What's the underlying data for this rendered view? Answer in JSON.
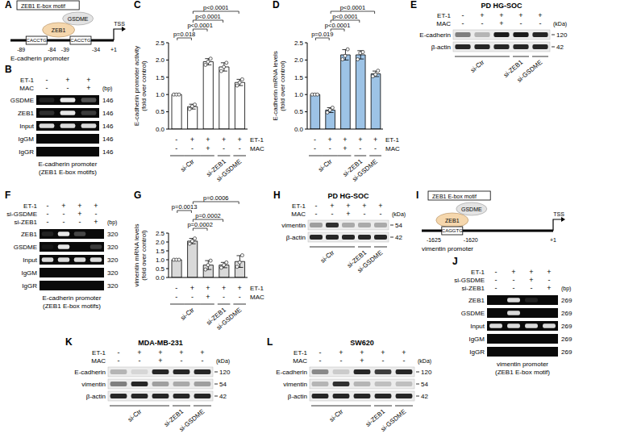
{
  "chart_data": [
    {
      "panel": "C",
      "type": "bar",
      "y_label": "E-cadherin promoter activity (fold over control)",
      "categories": [
        null,
        null,
        null,
        null,
        null
      ],
      "values": [
        1,
        0.65,
        1.95,
        1.8,
        1.35
      ],
      "errors": [
        0,
        0.07,
        0.09,
        0.12,
        0.09
      ],
      "replicates": [
        [
          1,
          1,
          1
        ],
        [
          0.58,
          0.66,
          0.71
        ],
        [
          1.86,
          1.95,
          2.04
        ],
        [
          1.68,
          1.8,
          1.92
        ],
        [
          1.26,
          1.35,
          1.44
        ]
      ],
      "color": "#ffffff",
      "ylim": [
        0,
        2.5
      ],
      "yticks": [
        {
          "value": 0,
          "label": "0.0"
        },
        0.5,
        {
          "value": 1,
          "label": "1.0"
        },
        1.5,
        {
          "value": 2,
          "label": "2.0"
        },
        2.5
      ],
      "tick_labels": "y",
      "annotations": [
        {
          "from": 0,
          "to": 1,
          "text": "p=0.018"
        },
        {
          "from": 1,
          "to": 2,
          "text": "p<0.0001"
        },
        {
          "from": 1,
          "to": 3,
          "text": "p<0.0001"
        },
        {
          "from": 1,
          "to": 4,
          "text": "p<0.0001"
        }
      ],
      "conditions": [
        {
          "label": "ET-1",
          "values": [
            "-",
            "+",
            "+",
            "+",
            "+"
          ]
        },
        {
          "label": "MAC",
          "values": [
            "-",
            "-",
            "+",
            "-",
            "-"
          ]
        }
      ],
      "groups": [
        {
          "label": "si-Ctr",
          "from": 0,
          "to": 2
        },
        {
          "label": "si-ZEB1",
          "from": 3,
          "to": 3
        },
        {
          "label": "si-GSDME",
          "from": 4,
          "to": 4
        }
      ]
    },
    {
      "panel": "D",
      "type": "bar",
      "y_label": "E-cadherin mRNA levels (fold over control)",
      "categories": [
        null,
        null,
        null,
        null,
        null
      ],
      "values": [
        1,
        0.55,
        2.15,
        2.15,
        1.6
      ],
      "errors": [
        0,
        0.07,
        0.15,
        0.12,
        0.08
      ],
      "replicates": [
        [
          1,
          1,
          1
        ],
        [
          0.48,
          0.55,
          0.62
        ],
        [
          2.02,
          2.12,
          2.31
        ],
        [
          2.02,
          2.2,
          2.23
        ],
        [
          1.53,
          1.58,
          1.69
        ]
      ],
      "color": "#9dc3e6",
      "ylim": [
        0,
        2.5
      ],
      "yticks": [
        {
          "value": 0,
          "label": "0.0"
        },
        0.5,
        {
          "value": 1,
          "label": "1.0"
        },
        1.5,
        {
          "value": 2,
          "label": "2.0"
        },
        2.5
      ],
      "tick_labels": "y",
      "annotations": [
        {
          "from": 0,
          "to": 1,
          "text": "p=0.019"
        },
        {
          "from": 1,
          "to": 2,
          "text": "p<0.0001"
        },
        {
          "from": 1,
          "to": 3,
          "text": "p<0.0001"
        },
        {
          "from": 1,
          "to": 4,
          "text": "p<0.0001"
        }
      ],
      "conditions": [
        {
          "label": "ET-1",
          "values": [
            "-",
            "+",
            "+",
            "+",
            "+"
          ]
        },
        {
          "label": "MAC",
          "values": [
            "-",
            "-",
            "+",
            "-",
            "-"
          ]
        }
      ],
      "groups": [
        {
          "label": "si-Ctr",
          "from": 0,
          "to": 2
        },
        {
          "label": "si-ZEB1",
          "from": 3,
          "to": 3
        },
        {
          "label": "si-GSDME",
          "from": 4,
          "to": 4
        }
      ]
    },
    {
      "panel": "G",
      "type": "bar",
      "y_label": "vimentin mRNA levels (fold over control)",
      "categories": [
        null,
        null,
        null,
        null,
        null
      ],
      "values": [
        1,
        2.05,
        0.7,
        0.7,
        0.9
      ],
      "errors": [
        0,
        0.15,
        0.25,
        0.15,
        0.33
      ],
      "replicates": [
        [
          1,
          1,
          1
        ],
        [
          1.9,
          2.05,
          2.2
        ],
        [
          0.45,
          0.7,
          0.95
        ],
        [
          0.55,
          0.7,
          0.85
        ],
        [
          0.6,
          0.85,
          1.25
        ]
      ],
      "color": "#d9d9d9",
      "ylim": [
        0,
        2.5
      ],
      "yticks": [
        {
          "value": 0,
          "label": "0.0"
        },
        0.5,
        {
          "value": 1,
          "label": "1.0"
        },
        1.5,
        {
          "value": 2,
          "label": "2.0"
        },
        2.5
      ],
      "tick_labels": "y",
      "annotations": [
        {
          "from": 1,
          "to": 2,
          "text": "p=0.0002"
        },
        {
          "from": 1,
          "to": 3,
          "text": "p=0.0002"
        },
        {
          "from": 0,
          "to": 1,
          "text": "p=0.0013"
        },
        {
          "from": 1,
          "to": 4,
          "text": "p=0.0006"
        }
      ],
      "conditions": [
        {
          "label": "ET-1",
          "values": [
            "-",
            "+",
            "+",
            "+",
            "+"
          ]
        },
        {
          "label": "MAC",
          "values": [
            "-",
            "-",
            "+",
            "-",
            "-"
          ]
        }
      ],
      "groups": [
        {
          "label": "si-Ctr",
          "from": 0,
          "to": 2
        },
        {
          "label": "si-ZEB1",
          "from": 3,
          "to": 3
        },
        {
          "label": "si-GSDME",
          "from": 4,
          "to": 4
        }
      ]
    }
  ],
  "diagrams": [
    {
      "panel": "A",
      "legend": "ZEB1 E-box motif",
      "promoter": "E-cadherin promoter",
      "proteins": [
        {
          "name": "ZEB1",
          "color": "#f5d7ad"
        },
        {
          "name": "GSDME",
          "color": "#e3e3e3"
        }
      ],
      "motifs": [
        {
          "sequence": "CACCTG",
          "start": -89,
          "end": -84
        },
        {
          "sequence": "CACCTG",
          "start": -39,
          "end": -34
        }
      ],
      "tss": {
        "label": "TSS",
        "value": 1,
        "value_label": "+1"
      }
    },
    {
      "panel": "I",
      "legend": "ZEB1 E-box motif",
      "promoter": "vimentin promoter",
      "proteins": [
        {
          "name": "ZEB1",
          "color": "#f5d7ad"
        },
        {
          "name": "GSDME",
          "color": "#e3e3e3"
        }
      ],
      "motifs": [
        {
          "sequence": "CAGGTG",
          "start": -1625,
          "end": -1620
        }
      ],
      "tss": {
        "label": "TSS",
        "value": 1,
        "value_label": "+1"
      }
    }
  ],
  "gels": [
    {
      "panel": "B",
      "header": [
        {
          "label": "ET-1",
          "values": [
            "-",
            "+",
            "+"
          ]
        },
        {
          "label": "MAC",
          "values": [
            "-",
            "-",
            "+"
          ]
        }
      ],
      "unit": "(bp)",
      "rows": [
        {
          "label": "GSDME",
          "size": 146,
          "intensity": [
            0.1,
            0.9,
            0.3
          ]
        },
        {
          "label": "ZEB1",
          "size": 146,
          "intensity": [
            0.15,
            0.9,
            0.2
          ]
        },
        {
          "label": "Input",
          "size": 146,
          "intensity": [
            0.85,
            0.85,
            0.85
          ]
        },
        {
          "label": "IgGM",
          "size": 146,
          "intensity": [
            0,
            0,
            0
          ]
        },
        {
          "label": "IgGR",
          "size": 146,
          "intensity": [
            0,
            0,
            0
          ]
        }
      ],
      "caption": "E-cadherin promoter (ZEB1 E-box motifs)"
    },
    {
      "panel": "F",
      "header": [
        {
          "label": "ET-1",
          "values": [
            "-",
            "+",
            "+",
            "+"
          ]
        },
        {
          "label": "si-GSDME",
          "values": [
            "-",
            "-",
            "+",
            "-"
          ]
        },
        {
          "label": "si-ZEB1",
          "values": [
            "-",
            "-",
            "-",
            "+"
          ]
        }
      ],
      "unit": "(bp)",
      "rows": [
        {
          "label": "ZEB1",
          "size": 320,
          "intensity": [
            0.1,
            0.9,
            0.25,
            0
          ]
        },
        {
          "label": "GSDME",
          "size": 320,
          "intensity": [
            0.05,
            0.9,
            0,
            0.2
          ]
        },
        {
          "label": "Input",
          "size": 320,
          "intensity": [
            0.85,
            0.85,
            0.85,
            0.85
          ]
        },
        {
          "label": "IgGM",
          "size": 320,
          "intensity": [
            0,
            0,
            0,
            0
          ]
        },
        {
          "label": "IgGR",
          "size": 320,
          "intensity": [
            0,
            0,
            0,
            0
          ]
        }
      ],
      "caption": "E-cadherin promoter (ZEB1 E-box motifs)"
    },
    {
      "panel": "J",
      "header": [
        {
          "label": "ET-1",
          "values": [
            "-",
            "+",
            "+",
            "+"
          ]
        },
        {
          "label": "si-GSDME",
          "values": [
            "-",
            "-",
            "+",
            "-"
          ]
        },
        {
          "label": "si-ZEB1",
          "values": [
            "-",
            "-",
            "-",
            "+"
          ]
        }
      ],
      "unit": "(bp)",
      "rows": [
        {
          "label": "ZEB1",
          "size": 269,
          "intensity": [
            0,
            0.85,
            0.1,
            0
          ]
        },
        {
          "label": "GSDME",
          "size": 269,
          "intensity": [
            0,
            0.85,
            0,
            0
          ]
        },
        {
          "label": "Input",
          "size": 269,
          "intensity": [
            0.85,
            0.85,
            0.85,
            0.85
          ]
        },
        {
          "label": "IgGM",
          "size": 269,
          "intensity": [
            0,
            0,
            0,
            0
          ]
        },
        {
          "label": "IgGR",
          "size": 269,
          "intensity": [
            0,
            0,
            0,
            0
          ]
        }
      ],
      "caption": "vimentin promoter (ZEB1 E-box motif)"
    }
  ],
  "blots": [
    {
      "panel": "E",
      "title": "PD HG-SOC",
      "header": [
        {
          "label": "ET-1",
          "values": [
            "-",
            "+",
            "+",
            "+",
            "+"
          ]
        },
        {
          "label": "MAC",
          "values": [
            "-",
            "-",
            "+",
            "-",
            "-"
          ]
        }
      ],
      "unit": "(kDa)",
      "rows": [
        {
          "label": "E-cadherin",
          "kda": 120,
          "intensity": [
            0.5,
            0.25,
            0.95,
            0.95,
            0.9
          ]
        },
        {
          "label": "β-actin",
          "kda": 42,
          "intensity": [
            0.9,
            0.9,
            0.9,
            0.9,
            0.9
          ]
        }
      ],
      "groups": [
        {
          "label": "si-Ctr",
          "from": 0,
          "to": 2
        },
        {
          "label": "si-ZEB1",
          "from": 3,
          "to": 3
        },
        {
          "label": "si-GSDME",
          "from": 4,
          "to": 4
        }
      ]
    },
    {
      "panel": "H",
      "title": "PD HG-SOC",
      "header": [
        {
          "label": "ET-1",
          "values": [
            "-",
            "+",
            "+",
            "+",
            "+"
          ]
        },
        {
          "label": "MAC",
          "values": [
            "-",
            "-",
            "+",
            "-",
            "-"
          ]
        }
      ],
      "unit": "(kDa)",
      "rows": [
        {
          "label": "vimentin",
          "kda": 54,
          "intensity": [
            0.35,
            0.85,
            0.3,
            0.3,
            0.3
          ]
        },
        {
          "label": "β-actin",
          "kda": 42,
          "intensity": [
            0.9,
            0.9,
            0.9,
            0.9,
            0.9
          ]
        }
      ],
      "groups": [
        {
          "label": "si-Ctr",
          "from": 0,
          "to": 2
        },
        {
          "label": "si-ZEB1",
          "from": 3,
          "to": 3
        },
        {
          "label": "si-GSDME",
          "from": 4,
          "to": 4
        }
      ]
    },
    {
      "panel": "K",
      "title": "MDA-MB-231",
      "header": [
        {
          "label": "ET-1",
          "values": [
            "-",
            "+",
            "+",
            "+",
            "+"
          ]
        },
        {
          "label": "MAC",
          "values": [
            "-",
            "-",
            "+",
            "-",
            "-"
          ]
        }
      ],
      "unit": "(kDa)",
      "rows": [
        {
          "label": "E-cadherin",
          "kda": 120,
          "intensity": [
            0.25,
            0.1,
            0.9,
            0.9,
            0.9
          ]
        },
        {
          "label": "vimentin",
          "kda": 54,
          "intensity": [
            0.5,
            0.9,
            0.35,
            0.3,
            0.35
          ]
        },
        {
          "label": "β-actin",
          "kda": 42,
          "intensity": [
            0.9,
            0.9,
            0.9,
            0.9,
            0.9
          ]
        }
      ],
      "groups": [
        {
          "label": "si-Ctr",
          "from": 0,
          "to": 2
        },
        {
          "label": "si-ZEB1",
          "from": 3,
          "to": 3
        },
        {
          "label": "si-GSDME",
          "from": 4,
          "to": 4
        }
      ]
    },
    {
      "panel": "L",
      "title": "SW620",
      "header": [
        {
          "label": "ET-1",
          "values": [
            "-",
            "+",
            "+",
            "+",
            "+"
          ]
        },
        {
          "label": "MAC",
          "values": [
            "-",
            "-",
            "+",
            "-",
            "-"
          ]
        }
      ],
      "unit": "(kDa)",
      "rows": [
        {
          "label": "E-cadherin",
          "kda": 120,
          "intensity": [
            0.45,
            0.15,
            0.9,
            0.8,
            0.9
          ]
        },
        {
          "label": "vimentin",
          "kda": 54,
          "intensity": [
            0.25,
            0.85,
            0.25,
            0.2,
            0.2
          ]
        },
        {
          "label": "β-actin",
          "kda": 42,
          "intensity": [
            0.9,
            0.9,
            0.9,
            0.9,
            0.9
          ]
        }
      ],
      "groups": [
        {
          "label": "si-Ctr",
          "from": 0,
          "to": 2
        },
        {
          "label": "si-ZEB1",
          "from": 3,
          "to": 3
        },
        {
          "label": "si-GSDME",
          "from": 4,
          "to": 4
        }
      ]
    }
  ]
}
